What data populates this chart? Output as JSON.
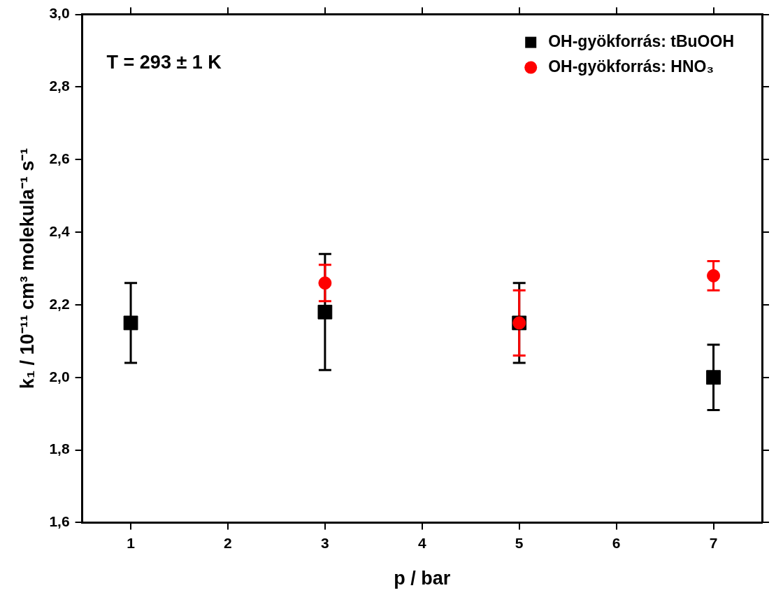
{
  "chart_data": {
    "type": "scatter",
    "xlabel": "p / bar",
    "ylabel": "k₁ / 10⁻¹¹ cm³ molekula⁻¹ s⁻¹",
    "xlim": [
      0.5,
      7.5
    ],
    "xticks": [
      1,
      2,
      3,
      4,
      5,
      6,
      7
    ],
    "ylim": [
      1.6,
      3.0
    ],
    "yticks": [
      {
        "value": 1.6,
        "label": "1,6"
      },
      {
        "value": 1.8,
        "label": "1,8"
      },
      {
        "value": 2.0,
        "label": "2,0"
      },
      {
        "value": 2.2,
        "label": "2,2"
      },
      {
        "value": 2.4,
        "label": "2,4"
      },
      {
        "value": 2.6,
        "label": "2,6"
      },
      {
        "value": 2.8,
        "label": "2,8"
      },
      {
        "value": 3.0,
        "label": "3,0"
      }
    ],
    "series": [
      {
        "name": "OH-gyökforrás: tBuOOH",
        "color": "#000000",
        "marker": "square",
        "x": [
          1,
          3,
          5,
          7
        ],
        "values": [
          2.15,
          2.18,
          2.15,
          2.0
        ],
        "errors": [
          0.11,
          0.16,
          0.11,
          0.09
        ]
      },
      {
        "name": "OH-gyökforrás: HNO₃",
        "color": "#ff0000",
        "marker": "circle",
        "x": [
          3,
          5,
          7
        ],
        "values": [
          2.26,
          2.15,
          2.28
        ],
        "errors": [
          0.05,
          0.09,
          0.04
        ]
      }
    ],
    "legend": "top right",
    "annotations": [
      "T = 293 ± 1 K"
    ]
  }
}
